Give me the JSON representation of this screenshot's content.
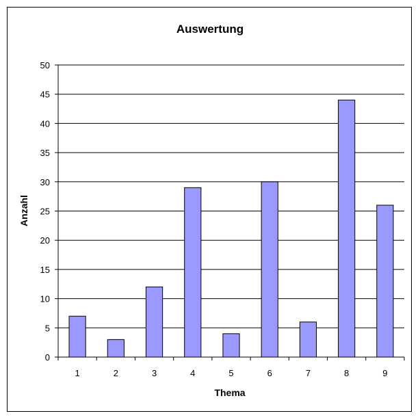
{
  "chart_data": {
    "type": "bar",
    "title": "Auswertung",
    "xlabel": "Thema",
    "ylabel": "Anzahl",
    "categories": [
      "1",
      "2",
      "3",
      "4",
      "5",
      "6",
      "7",
      "8",
      "9"
    ],
    "values": [
      7,
      3,
      12,
      29,
      4,
      30,
      6,
      44,
      26
    ],
    "ylim": [
      0,
      50
    ],
    "yticks": [
      "0",
      "5",
      "10",
      "15",
      "20",
      "25",
      "30",
      "35",
      "40",
      "45",
      "50"
    ],
    "grid": true,
    "legend": "none",
    "bar_color": "#9999ff",
    "bar_edge_color": "#000000"
  }
}
